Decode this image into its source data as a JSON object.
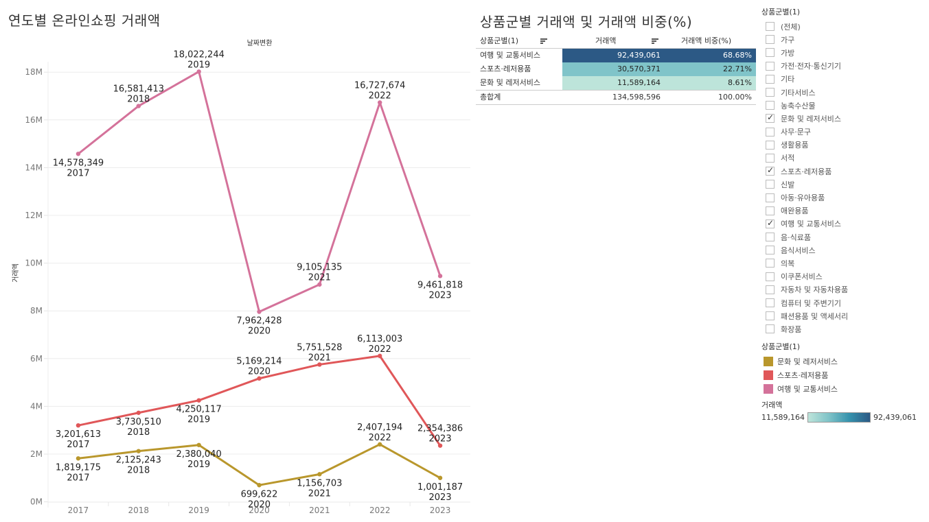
{
  "chart": {
    "title": "연도별 온라인쇼핑 거래액",
    "column_header": "날짜변환",
    "y_axis_title": "거래액"
  },
  "chart_data": {
    "type": "line",
    "title": "연도별 온라인쇼핑 거래액",
    "xlabel": "날짜변환",
    "ylabel": "거래액",
    "x": [
      "2017",
      "2018",
      "2019",
      "2020",
      "2021",
      "2022",
      "2023"
    ],
    "y_ticks": [
      "0M",
      "2M",
      "4M",
      "6M",
      "8M",
      "10M",
      "12M",
      "14M",
      "16M",
      "18M"
    ],
    "ylim": [
      0,
      18500000
    ],
    "grid": true,
    "series": [
      {
        "name": "여행 및 교통서비스",
        "color": "#d4729a",
        "values": [
          14578349,
          16581413,
          18022244,
          7962428,
          9105135,
          16727674,
          9461818
        ],
        "labels": [
          "14,578,349",
          "16,581,413",
          "18,022,244",
          "7,962,428",
          "9,105,135",
          "16,727,674",
          "9,461,818"
        ],
        "label_pos": [
          "below",
          "above",
          "above",
          "below",
          "above",
          "above",
          "below"
        ]
      },
      {
        "name": "스포츠·레저용품",
        "color": "#e05759",
        "values": [
          3201613,
          3730510,
          4250117,
          5169214,
          5751528,
          6113003,
          2354386
        ],
        "labels": [
          "3,201,613",
          "3,730,510",
          "4,250,117",
          "5,169,214",
          "5,751,528",
          "6,113,003",
          "2,354,386"
        ],
        "label_pos": [
          "below",
          "below",
          "below",
          "above",
          "above",
          "above",
          "above"
        ]
      },
      {
        "name": "문화 및 레저서비스",
        "color": "#b9972c",
        "values": [
          1819175,
          2125243,
          2380040,
          699622,
          1156703,
          2407194,
          1001187
        ],
        "labels": [
          "1,819,175",
          "2,125,243",
          "2,380,040",
          "699,622",
          "1,156,703",
          "2,407,194",
          "1,001,187"
        ],
        "label_pos": [
          "below",
          "below",
          "below",
          "below",
          "below",
          "above",
          "below"
        ]
      }
    ]
  },
  "table": {
    "title": "상품군별 거래액 및 거래액 비중(%)",
    "headers": [
      "상품군별(1)",
      "거래액",
      "거래액 비중(%)"
    ],
    "rows": [
      {
        "name": "여행 및 교통서비스",
        "amount": "92,439,061",
        "share": "68.68%",
        "bg": "#2c5985",
        "fg": "#ffffff"
      },
      {
        "name": "스포츠·레저용품",
        "amount": "30,570,371",
        "share": "22.71%",
        "bg": "#80c4c9",
        "fg": "#222222"
      },
      {
        "name": "문화 및 레저서비스",
        "amount": "11,589,164",
        "share": "8.61%",
        "bg": "#bde4da",
        "fg": "#222222"
      }
    ],
    "total": {
      "name": "총합계",
      "amount": "134,598,596",
      "share": "100.00%"
    }
  },
  "filter": {
    "title": "상품군별(1)",
    "items": [
      {
        "label": "(전체)",
        "checked": false
      },
      {
        "label": "가구",
        "checked": false
      },
      {
        "label": "가방",
        "checked": false
      },
      {
        "label": "가전·전자·통신기기",
        "checked": false
      },
      {
        "label": "기타",
        "checked": false
      },
      {
        "label": "기타서비스",
        "checked": false
      },
      {
        "label": "농축수산물",
        "checked": false
      },
      {
        "label": "문화 및 레저서비스",
        "checked": true
      },
      {
        "label": "사무·문구",
        "checked": false
      },
      {
        "label": "생활용품",
        "checked": false
      },
      {
        "label": "서적",
        "checked": false
      },
      {
        "label": "스포츠·레저용품",
        "checked": true
      },
      {
        "label": "신발",
        "checked": false
      },
      {
        "label": "아동·유아용품",
        "checked": false
      },
      {
        "label": "애완용품",
        "checked": false
      },
      {
        "label": "여행 및 교통서비스",
        "checked": true
      },
      {
        "label": "음·식료품",
        "checked": false
      },
      {
        "label": "음식서비스",
        "checked": false
      },
      {
        "label": "의복",
        "checked": false
      },
      {
        "label": "이쿠폰서비스",
        "checked": false
      },
      {
        "label": "자동차 및 자동차용품",
        "checked": false
      },
      {
        "label": "컴퓨터 및 주변기기",
        "checked": false
      },
      {
        "label": "패션용품 및 액세서리",
        "checked": false
      },
      {
        "label": "화장품",
        "checked": false
      }
    ]
  },
  "legend": {
    "title": "상품군별(1)",
    "items": [
      {
        "label": "문화 및 레저서비스",
        "color": "#b9972c"
      },
      {
        "label": "스포츠·레저용품",
        "color": "#e05759"
      },
      {
        "label": "여행 및 교통서비스",
        "color": "#d4729a"
      }
    ]
  },
  "color_legend": {
    "title": "거래액",
    "min": "11,589,164",
    "max": "92,439,061",
    "min_color": "#bde4da",
    "max_color": "#2c5985"
  }
}
